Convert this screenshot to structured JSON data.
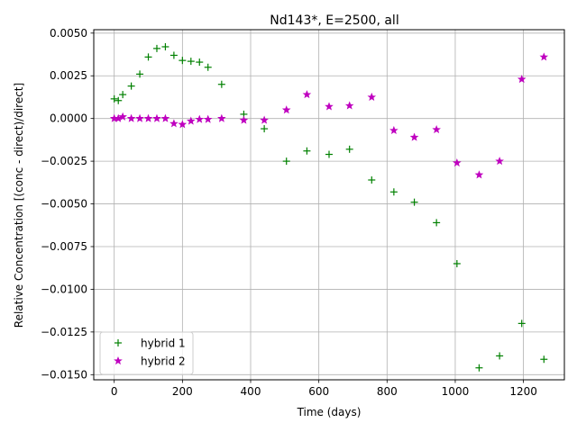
{
  "chart_data": {
    "type": "scatter",
    "title": "Nd143*, E=2500, all",
    "xlabel": "Time (days)",
    "ylabel": "Relative Concentration [(conc - direct)/direct]",
    "xlim": [
      -60,
      1320
    ],
    "ylim": [
      -0.0153,
      0.0052
    ],
    "x_ticks": [
      0,
      200,
      400,
      600,
      800,
      1000,
      1200
    ],
    "x_tick_labels": [
      "0",
      "200",
      "400",
      "600",
      "800",
      "1000",
      "1200"
    ],
    "y_ticks": [
      0.005,
      0.0025,
      0.0,
      -0.0025,
      -0.005,
      -0.0075,
      -0.01,
      -0.0125,
      -0.015
    ],
    "y_tick_labels": [
      "0.0050",
      "0.0025",
      "0.0000",
      "−0.0025",
      "−0.0050",
      "−0.0075",
      "−0.0100",
      "−0.0125",
      "−0.0150"
    ],
    "grid": true,
    "legend_position": "lower-left",
    "series": [
      {
        "name": "hybrid 1",
        "marker": "plus",
        "color": "#008000",
        "points": [
          [
            0,
            0.00115
          ],
          [
            12,
            0.00105
          ],
          [
            25,
            0.0014
          ],
          [
            50,
            0.0019
          ],
          [
            75,
            0.0026
          ],
          [
            100,
            0.0036
          ],
          [
            125,
            0.0041
          ],
          [
            150,
            0.0042
          ],
          [
            175,
            0.0037
          ],
          [
            200,
            0.0034
          ],
          [
            225,
            0.00335
          ],
          [
            250,
            0.0033
          ],
          [
            275,
            0.003
          ],
          [
            315,
            0.002
          ],
          [
            380,
            0.00025
          ],
          [
            440,
            -0.0006
          ],
          [
            505,
            -0.0025
          ],
          [
            565,
            -0.0019
          ],
          [
            630,
            -0.0021
          ],
          [
            690,
            -0.0018
          ],
          [
            755,
            -0.0036
          ],
          [
            820,
            -0.0043
          ],
          [
            880,
            -0.0049
          ],
          [
            945,
            -0.0061
          ],
          [
            1005,
            -0.0085
          ],
          [
            1070,
            -0.0146
          ],
          [
            1130,
            -0.0139
          ],
          [
            1195,
            -0.012
          ],
          [
            1260,
            -0.0141
          ]
        ]
      },
      {
        "name": "hybrid 2",
        "marker": "star",
        "color": "#bf00bf",
        "points": [
          [
            0,
            0.0
          ],
          [
            12,
            0.0
          ],
          [
            25,
            0.0001
          ],
          [
            50,
            0.0
          ],
          [
            75,
            0.0
          ],
          [
            100,
            0.0
          ],
          [
            125,
            0.0
          ],
          [
            150,
            0.0
          ],
          [
            175,
            -0.0003
          ],
          [
            200,
            -0.00035
          ],
          [
            225,
            -0.00015
          ],
          [
            250,
            -5e-05
          ],
          [
            275,
            -5e-05
          ],
          [
            315,
            0.0
          ],
          [
            380,
            -0.0001
          ],
          [
            440,
            -0.0001
          ],
          [
            505,
            0.0005
          ],
          [
            565,
            0.0014
          ],
          [
            630,
            0.0007
          ],
          [
            690,
            0.00075
          ],
          [
            755,
            0.00125
          ],
          [
            820,
            -0.0007
          ],
          [
            880,
            -0.0011
          ],
          [
            945,
            -0.00065
          ],
          [
            1005,
            -0.0026
          ],
          [
            1070,
            -0.0033
          ],
          [
            1130,
            -0.0025
          ],
          [
            1195,
            0.0023
          ],
          [
            1260,
            0.0036
          ]
        ]
      }
    ]
  }
}
